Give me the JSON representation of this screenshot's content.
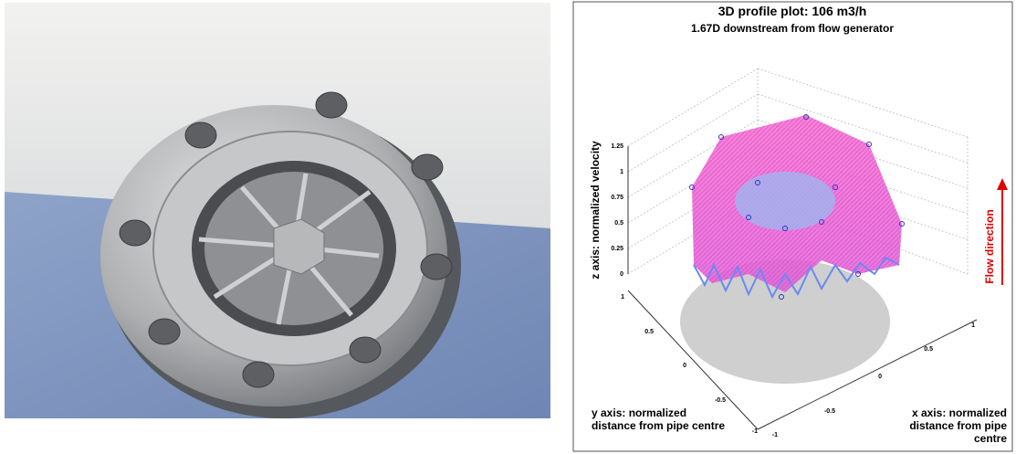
{
  "figure": {
    "plot": {
      "title": "3D profile plot: 106 m3/h",
      "subtitle": "1.67D downstream from flow generator",
      "z_axis_label": "z axis: normalized velocity",
      "y_axis_label": "y axis: normalized distance from pipe centre",
      "x_axis_label": "x axis: normalized distance from pipe centre",
      "flow_label": "Flow direction",
      "z_ticks": [
        1.25,
        1,
        0.75,
        0.5,
        0.25,
        0
      ],
      "y_ticks": [
        1,
        0.5,
        0,
        -0.5,
        -1
      ],
      "x_ticks": [
        -1,
        -0.5,
        0,
        0.5,
        1
      ]
    }
  }
}
